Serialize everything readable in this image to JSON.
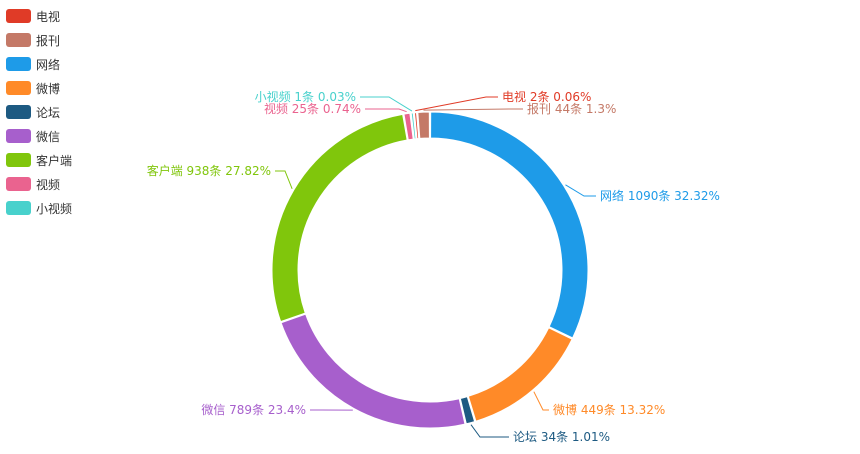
{
  "chart_data": {
    "type": "pie",
    "variant": "donut",
    "legend_position": "top-left",
    "series": [
      {
        "slices": [
          {
            "name": "网络",
            "value": 1090,
            "unit": "条",
            "percent": "32.32%",
            "color": "#1e9be8"
          },
          {
            "name": "微博",
            "value": 449,
            "unit": "条",
            "percent": "13.32%",
            "color": "#ff8a28"
          },
          {
            "name": "论坛",
            "value": 34,
            "unit": "条",
            "percent": "1.01%",
            "color": "#1d5a82"
          },
          {
            "name": "微信",
            "value": 789,
            "unit": "条",
            "percent": "23.4%",
            "color": "#a75fcc"
          },
          {
            "name": "客户端",
            "value": 938,
            "unit": "条",
            "percent": "27.82%",
            "color": "#80c60c"
          },
          {
            "name": "视频",
            "value": 25,
            "unit": "条",
            "percent": "0.74%",
            "color": "#ea638f"
          },
          {
            "name": "小视频",
            "value": 1,
            "unit": "条",
            "percent": "0.03%",
            "color": "#48d1cc"
          },
          {
            "name": "电视",
            "value": 2,
            "unit": "条",
            "percent": "0.06%",
            "color": "#e03b27"
          },
          {
            "name": "报刊",
            "value": 44,
            "unit": "条",
            "percent": "1.3%",
            "color": "#c47967"
          }
        ]
      }
    ],
    "legend": [
      "电视",
      "报刊",
      "网络",
      "微博",
      "论坛",
      "微信",
      "客户端",
      "视频",
      "小视频"
    ]
  }
}
